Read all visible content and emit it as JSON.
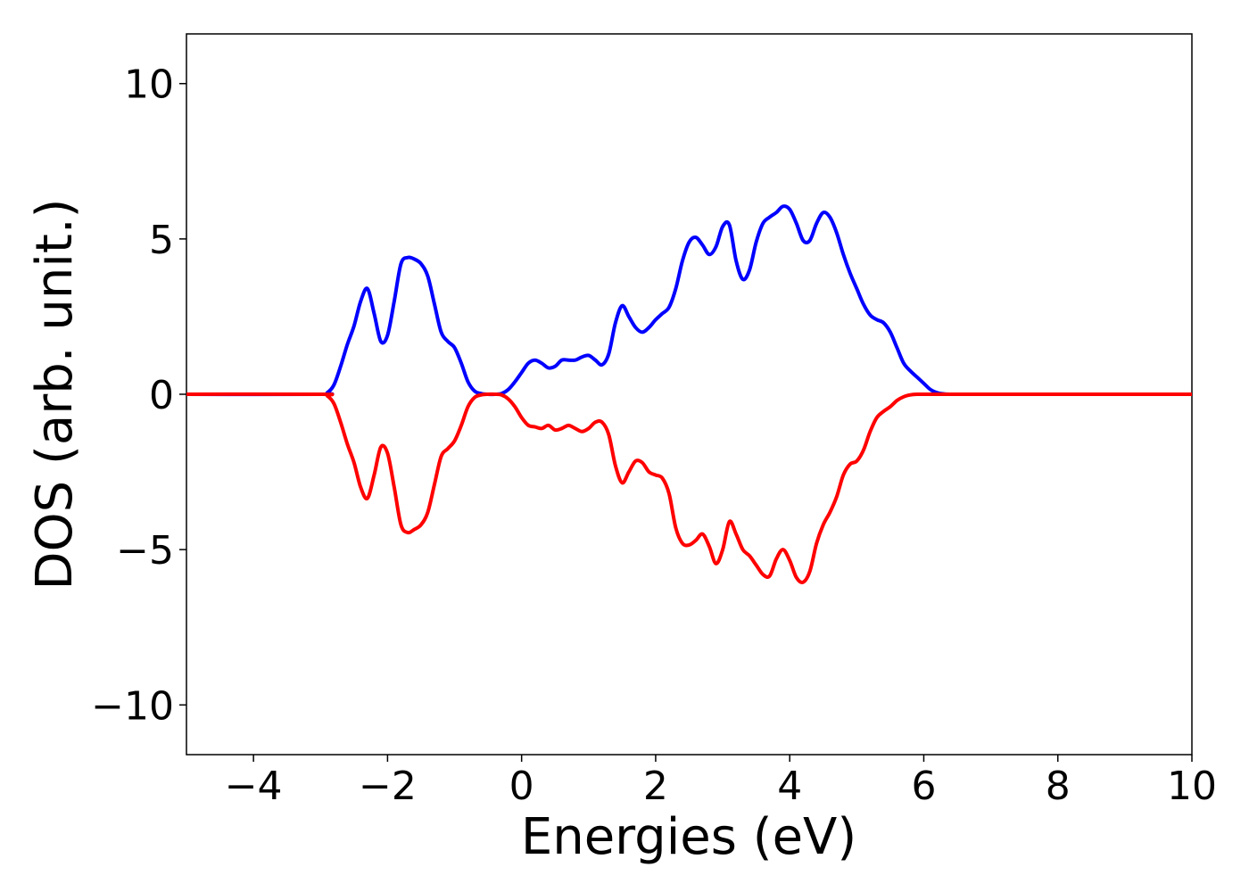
{
  "chart_data": {
    "type": "line",
    "title": "",
    "xlabel": "Energies (eV)",
    "ylabel": "DOS (arb. unit.)",
    "xlim": [
      -5,
      10
    ],
    "ylim": [
      -11.6,
      11.6
    ],
    "xticks": [
      -4,
      -2,
      0,
      2,
      4,
      6,
      8,
      10
    ],
    "xtick_labels": [
      "−4",
      "−2",
      "0",
      "2",
      "4",
      "6",
      "8",
      "10"
    ],
    "yticks": [
      -10,
      -5,
      0,
      5,
      10
    ],
    "ytick_labels": [
      "−10",
      "−5",
      "0",
      "5",
      "10"
    ],
    "grid": false,
    "legend": "none",
    "series": [
      {
        "color": "#0000ff",
        "x": [
          -5,
          -3.0,
          -2.9,
          -2.8,
          -2.7,
          -2.6,
          -2.5,
          -2.4,
          -2.3,
          -2.2,
          -2.1,
          -2.0,
          -1.9,
          -1.8,
          -1.7,
          -1.6,
          -1.5,
          -1.4,
          -1.3,
          -1.2,
          -1.1,
          -1.0,
          -0.9,
          -0.8,
          -0.7,
          -0.6,
          -0.5,
          -0.4,
          -0.3,
          -0.2,
          -0.1,
          0.0,
          0.1,
          0.2,
          0.3,
          0.4,
          0.5,
          0.6,
          0.7,
          0.8,
          0.9,
          1.0,
          1.1,
          1.2,
          1.3,
          1.4,
          1.5,
          1.6,
          1.7,
          1.8,
          1.9,
          2.0,
          2.1,
          2.2,
          2.3,
          2.4,
          2.5,
          2.6,
          2.7,
          2.8,
          2.9,
          3.0,
          3.1,
          3.2,
          3.3,
          3.4,
          3.5,
          3.6,
          3.7,
          3.8,
          3.9,
          4.0,
          4.1,
          4.2,
          4.3,
          4.4,
          4.5,
          4.6,
          4.7,
          4.8,
          4.9,
          5.0,
          5.1,
          5.2,
          5.3,
          5.4,
          5.5,
          5.6,
          5.7,
          5.8,
          5.9,
          6.0,
          6.1,
          6.2,
          6.3,
          6.4,
          6.5,
          6.6,
          6.7,
          6.8,
          6.9,
          7.0,
          7.1,
          7.2,
          7.3,
          7.4,
          7.5,
          7.6,
          7.7,
          7.8,
          7.9,
          8.0,
          10
        ],
        "y": [
          0,
          0,
          0.05,
          0.3,
          0.9,
          1.6,
          2.2,
          3.0,
          3.4,
          2.6,
          1.7,
          1.9,
          3.0,
          4.2,
          4.4,
          4.35,
          4.2,
          3.8,
          2.9,
          2.0,
          1.7,
          1.5,
          1.0,
          0.4,
          0.1,
          0.02,
          0.0,
          0.0,
          0.02,
          0.15,
          0.4,
          0.7,
          1.0,
          1.1,
          1.0,
          0.85,
          0.9,
          1.1,
          1.1,
          1.1,
          1.2,
          1.25,
          1.1,
          0.95,
          1.3,
          2.3,
          2.85,
          2.5,
          2.15,
          2.0,
          2.15,
          2.4,
          2.6,
          2.8,
          3.4,
          4.3,
          4.9,
          5.05,
          4.8,
          4.5,
          4.75,
          5.4,
          5.45,
          4.3,
          3.7,
          4.0,
          4.9,
          5.5,
          5.7,
          5.85,
          6.05,
          5.95,
          5.5,
          4.95,
          4.95,
          5.5,
          5.85,
          5.7,
          5.2,
          4.5,
          3.9,
          3.4,
          2.9,
          2.55,
          2.4,
          2.3,
          2.0,
          1.5,
          1.0,
          0.75,
          0.55,
          0.35,
          0.15,
          0.05,
          0.01,
          0,
          0,
          0,
          0,
          0,
          0,
          0,
          0,
          0,
          0,
          0,
          0,
          0,
          0,
          0,
          0,
          0,
          0
        ]
      },
      {
        "color": "#ff0000",
        "x": [
          -5,
          -3.0,
          -2.9,
          -2.8,
          -2.7,
          -2.6,
          -2.5,
          -2.4,
          -2.3,
          -2.2,
          -2.1,
          -2.0,
          -1.9,
          -1.8,
          -1.7,
          -1.6,
          -1.5,
          -1.4,
          -1.3,
          -1.2,
          -1.1,
          -1.0,
          -0.9,
          -0.8,
          -0.7,
          -0.6,
          -0.5,
          -0.4,
          -0.3,
          -0.2,
          -0.1,
          0.0,
          0.1,
          0.2,
          0.3,
          0.4,
          0.5,
          0.6,
          0.7,
          0.8,
          0.9,
          1.0,
          1.1,
          1.2,
          1.3,
          1.4,
          1.5,
          1.6,
          1.7,
          1.8,
          1.9,
          2.0,
          2.1,
          2.2,
          2.3,
          2.4,
          2.5,
          2.6,
          2.7,
          2.8,
          2.9,
          3.0,
          3.1,
          3.2,
          3.3,
          3.4,
          3.5,
          3.6,
          3.7,
          3.8,
          3.9,
          4.0,
          4.1,
          4.2,
          4.3,
          4.4,
          4.5,
          4.6,
          4.7,
          4.8,
          4.9,
          5.0,
          5.1,
          5.2,
          5.3,
          5.4,
          5.5,
          5.6,
          5.7,
          5.8,
          5.9,
          6.0,
          6.1,
          6.2,
          6.3,
          6.4,
          6.5,
          6.6,
          6.7,
          6.8,
          6.9,
          7.0,
          7.1,
          7.2,
          7.3,
          7.4,
          7.5,
          7.6,
          7.7,
          7.8,
          7.9,
          8.0,
          10
        ],
        "y": [
          0,
          0,
          -0.05,
          -0.3,
          -0.9,
          -1.6,
          -2.2,
          -3.0,
          -3.35,
          -2.6,
          -1.7,
          -1.9,
          -3.0,
          -4.2,
          -4.45,
          -4.35,
          -4.2,
          -3.8,
          -2.9,
          -2.0,
          -1.75,
          -1.5,
          -1.0,
          -0.4,
          -0.1,
          -0.02,
          0.0,
          0.0,
          -0.02,
          -0.15,
          -0.4,
          -0.75,
          -1.0,
          -1.05,
          -1.1,
          -1.0,
          -1.15,
          -1.1,
          -1.0,
          -1.1,
          -1.2,
          -1.1,
          -0.9,
          -0.9,
          -1.3,
          -2.3,
          -2.85,
          -2.5,
          -2.15,
          -2.2,
          -2.5,
          -2.6,
          -2.7,
          -3.2,
          -4.3,
          -4.8,
          -4.85,
          -4.7,
          -4.5,
          -4.9,
          -5.45,
          -5.0,
          -4.1,
          -4.5,
          -5.0,
          -5.2,
          -5.5,
          -5.8,
          -5.85,
          -5.3,
          -5.0,
          -5.35,
          -5.9,
          -6.05,
          -5.7,
          -4.8,
          -4.2,
          -3.8,
          -3.3,
          -2.6,
          -2.25,
          -2.15,
          -1.8,
          -1.2,
          -0.75,
          -0.55,
          -0.4,
          -0.2,
          -0.08,
          -0.02,
          0,
          0,
          0,
          0,
          0,
          0,
          0,
          0,
          0,
          0,
          0,
          0,
          0,
          0,
          0,
          0,
          0,
          0,
          0,
          0,
          0,
          0,
          0
        ]
      }
    ]
  }
}
